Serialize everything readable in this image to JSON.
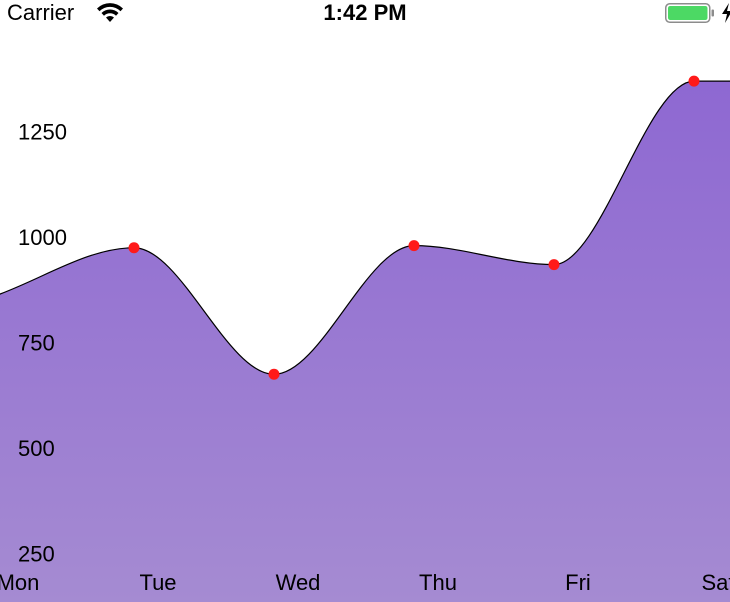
{
  "status_bar": {
    "carrier": "Carrier",
    "time": "1:42 PM",
    "battery_color": "#4cd964"
  },
  "chart_data": {
    "type": "area",
    "categories": [
      "Mon",
      "Tue",
      "Wed",
      "Thu",
      "Fri",
      "Sat"
    ],
    "series": [
      {
        "values": [
          860,
          975,
          675,
          980,
          935,
          1370
        ]
      }
    ],
    "y_ticks": [
      250,
      500,
      750,
      1000,
      1250
    ],
    "ylim": [
      140,
      1420
    ],
    "title": "",
    "xlabel": "",
    "ylabel": "",
    "grid": false,
    "legend": "none",
    "line_color": "#000000",
    "marker_color": "#ff1a1a",
    "fill_color_top": "#8e68d2",
    "fill_color_bottom": "#a58bd2",
    "curve": "monotone"
  }
}
